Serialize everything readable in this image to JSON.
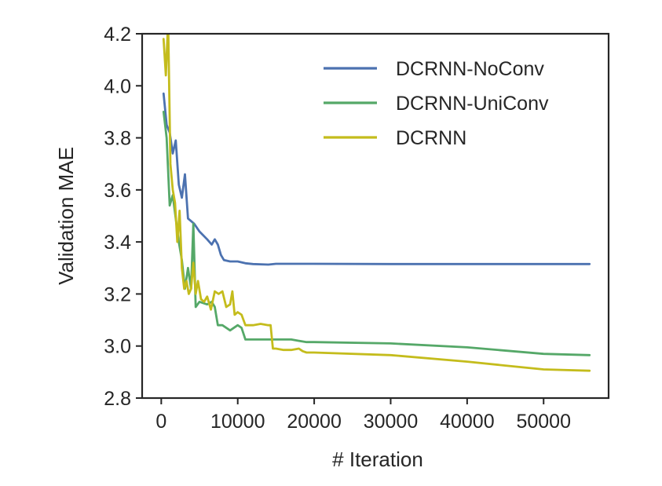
{
  "chart_data": {
    "type": "line",
    "title": "",
    "xlabel": "# Iteration",
    "ylabel": "Validation MAE",
    "xlim": [
      -2500,
      58500
    ],
    "ylim": [
      2.8,
      4.2
    ],
    "xticks": [
      0,
      10000,
      20000,
      30000,
      40000,
      50000
    ],
    "xtick_labels": [
      "0",
      "10000",
      "20000",
      "30000",
      "40000",
      "50000"
    ],
    "yticks": [
      2.8,
      3.0,
      3.2,
      3.4,
      3.6,
      3.8,
      4.0,
      4.2
    ],
    "ytick_labels": [
      "2.8",
      "3.0",
      "3.2",
      "3.4",
      "3.6",
      "3.8",
      "4.0",
      "4.2"
    ],
    "grid": false,
    "legend_position": "top-right",
    "series": [
      {
        "name": "DCRNN-NoConv",
        "color": "#4C72B0",
        "x": [
          300,
          700,
          1100,
          1500,
          1900,
          2300,
          2700,
          3100,
          3500,
          3900,
          4300,
          5000,
          6000,
          6600,
          7000,
          7400,
          7800,
          8200,
          9000,
          10000,
          11000,
          12000,
          14000,
          15000,
          20000,
          30000,
          40000,
          50000,
          56000
        ],
        "y": [
          3.97,
          3.85,
          3.82,
          3.74,
          3.79,
          3.62,
          3.57,
          3.66,
          3.49,
          3.48,
          3.47,
          3.44,
          3.41,
          3.39,
          3.41,
          3.39,
          3.35,
          3.33,
          3.325,
          3.325,
          3.318,
          3.315,
          3.313,
          3.316,
          3.316,
          3.315,
          3.315,
          3.315,
          3.315
        ]
      },
      {
        "name": "DCRNN-UniConv",
        "color": "#55A868",
        "x": [
          300,
          700,
          1100,
          1500,
          1900,
          2300,
          2700,
          3100,
          3500,
          3900,
          4200,
          4500,
          5000,
          6000,
          6600,
          7000,
          7400,
          8000,
          9000,
          10000,
          10500,
          11000,
          12000,
          15000,
          17000,
          18000,
          19000,
          20000,
          30000,
          40000,
          50000,
          56000
        ],
        "y": [
          3.9,
          3.8,
          3.54,
          3.58,
          3.49,
          3.4,
          3.33,
          3.22,
          3.3,
          3.22,
          3.47,
          3.15,
          3.17,
          3.16,
          3.17,
          3.15,
          3.08,
          3.08,
          3.06,
          3.08,
          3.07,
          3.025,
          3.025,
          3.025,
          3.025,
          3.02,
          3.015,
          3.015,
          3.01,
          2.995,
          2.97,
          2.965
        ]
      },
      {
        "name": "DCRNN",
        "color": "#C4BC1C",
        "x": [
          300,
          600,
          900,
          1200,
          1500,
          1800,
          2100,
          2400,
          2700,
          3000,
          3300,
          3600,
          3900,
          4200,
          4500,
          4800,
          5200,
          5600,
          6000,
          6500,
          7000,
          7500,
          8000,
          8500,
          9000,
          9300,
          9600,
          10000,
          10500,
          11000,
          12000,
          13000,
          14000,
          14300,
          14600,
          15000,
          16000,
          17000,
          18000,
          18500,
          19000,
          20000,
          30000,
          40000,
          45000,
          50000,
          56000
        ],
        "y": [
          4.18,
          4.04,
          4.25,
          3.7,
          3.6,
          3.55,
          3.4,
          3.52,
          3.3,
          3.22,
          3.25,
          3.2,
          3.22,
          3.32,
          3.2,
          3.25,
          3.18,
          3.17,
          3.19,
          3.14,
          3.21,
          3.2,
          3.21,
          3.15,
          3.16,
          3.21,
          3.12,
          3.13,
          3.12,
          3.08,
          3.08,
          3.085,
          3.08,
          3.08,
          2.99,
          2.99,
          2.985,
          2.985,
          2.99,
          2.98,
          2.975,
          2.975,
          2.965,
          2.94,
          2.925,
          2.91,
          2.905
        ]
      }
    ]
  }
}
